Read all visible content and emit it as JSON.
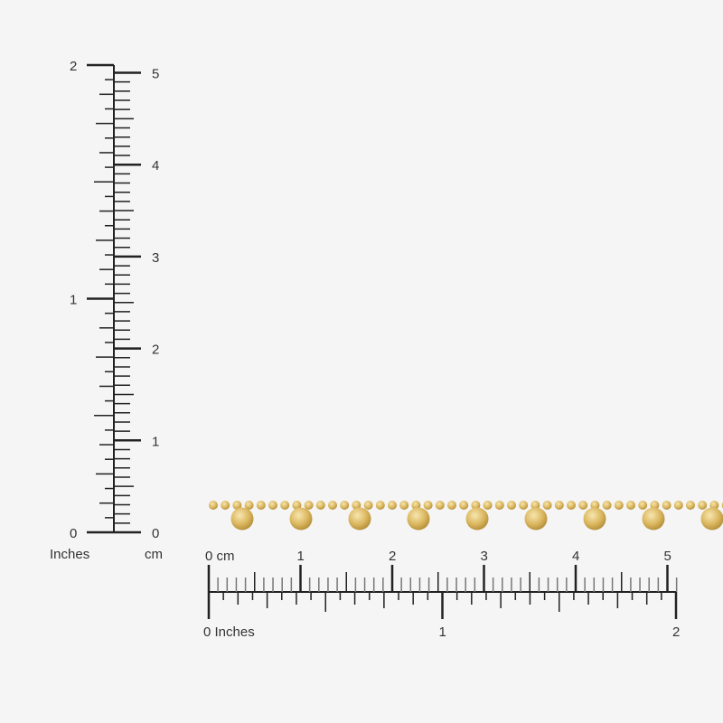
{
  "vertical_ruler": {
    "inch_labels": [
      "0",
      "1",
      "2"
    ],
    "cm_labels": [
      "0",
      "1",
      "2",
      "3",
      "4",
      "5"
    ],
    "inch_unit": "Inches",
    "cm_unit": "cm"
  },
  "horizontal_ruler": {
    "cm_labels": [
      "0 cm",
      "1",
      "2",
      "3",
      "4",
      "5"
    ],
    "inch_labels": [
      "0 Inches",
      "1",
      "2"
    ]
  },
  "product": {
    "chain_color": "#e3c77c",
    "pendant_color": "#d9b45c",
    "pendant_count": 9
  },
  "colors": {
    "background": "#f5f5f5",
    "ruler": "#222222"
  }
}
